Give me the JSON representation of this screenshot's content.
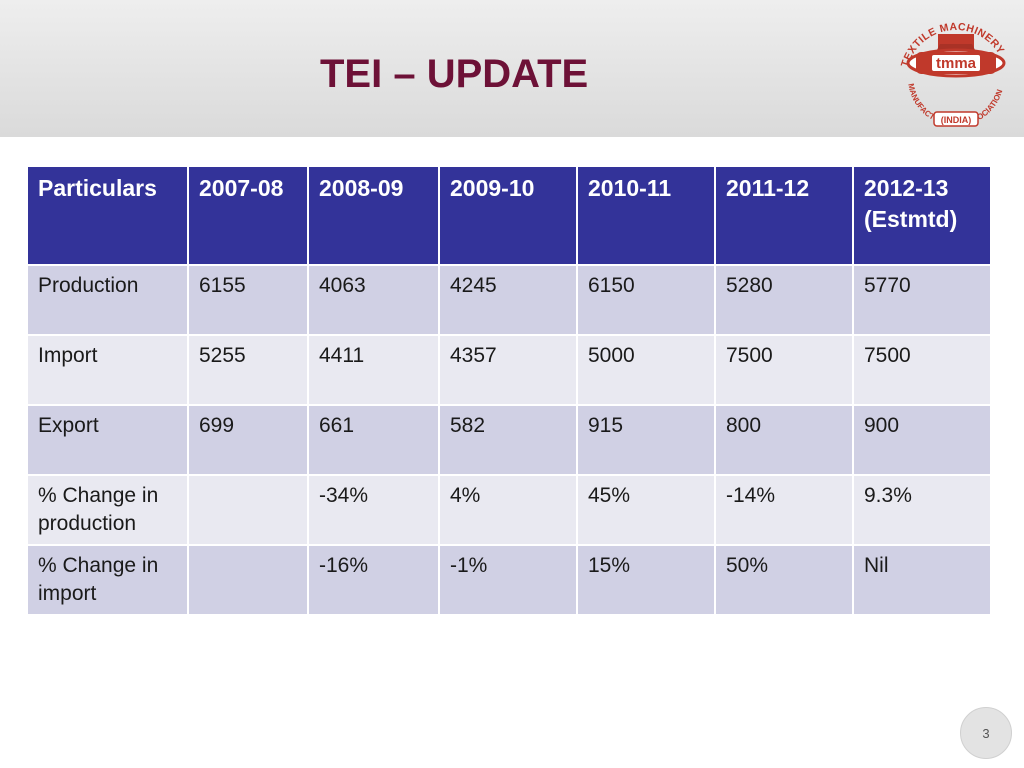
{
  "slide": {
    "title": "TEI – UPDATE",
    "page_number": "3"
  },
  "logo": {
    "arc_text": "TEXTILE MACHINERY MANUFACTURERS' ASSOCIATION",
    "abbrev": "tmma",
    "country": "(INDIA)",
    "color": "#c0392b"
  },
  "table": {
    "headers": [
      "Particulars",
      "2007-08",
      "2008-09",
      "2009-10",
      "2010-11",
      "2011-12",
      "2012-13 (Estmtd)"
    ],
    "rows": [
      [
        "Production",
        "6155",
        "4063",
        "4245",
        "6150",
        "5280",
        "5770"
      ],
      [
        "Import",
        "5255",
        "4411",
        "4357",
        "5000",
        "7500",
        "7500"
      ],
      [
        "Export",
        "699",
        "661",
        "582",
        "915",
        "800",
        "900"
      ],
      [
        "% Change in production",
        "",
        "-34%",
        "4%",
        "45%",
        "-14%",
        "9.3%"
      ],
      [
        "% Change in import",
        "",
        "-16%",
        "-1%",
        "15%",
        "50%",
        "Nil"
      ]
    ]
  },
  "colors": {
    "title": "#6d1137",
    "header_bg": "#333399",
    "row_dark": "#d0d0e4",
    "row_light": "#e9e9f1"
  }
}
